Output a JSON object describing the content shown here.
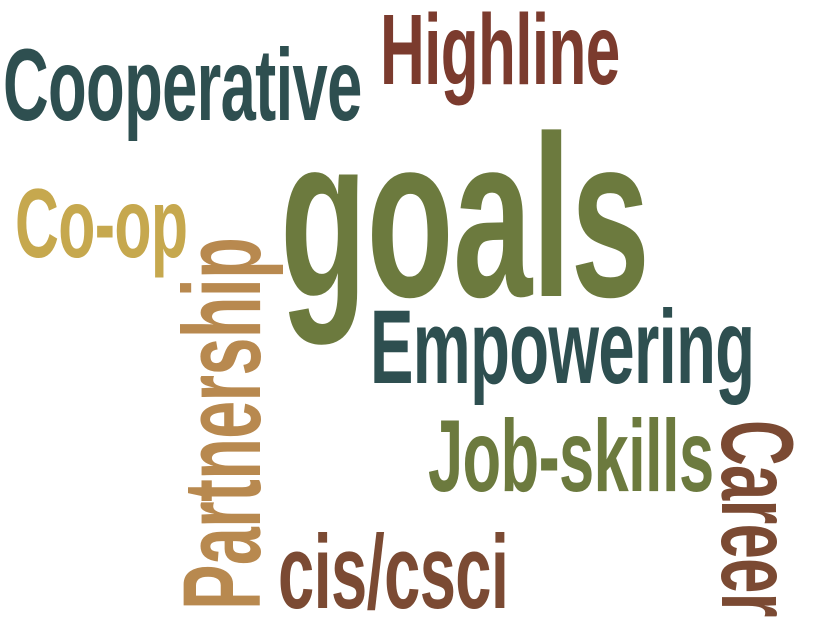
{
  "word_cloud": {
    "words": [
      {
        "id": "highline",
        "text": "Highline",
        "color": "#7b3b2e",
        "orientation": "horizontal"
      },
      {
        "id": "cooperative",
        "text": "Cooperative",
        "color": "#2e4f50",
        "orientation": "horizontal"
      },
      {
        "id": "goals",
        "text": "goals",
        "color": "#6c7a3e",
        "orientation": "horizontal"
      },
      {
        "id": "coop",
        "text": "Co-op",
        "color": "#c6a84e",
        "orientation": "horizontal"
      },
      {
        "id": "empowering",
        "text": "Empowering",
        "color": "#2e4f50",
        "orientation": "horizontal"
      },
      {
        "id": "jobskills",
        "text": "Job-skills",
        "color": "#6c7a3e",
        "orientation": "horizontal"
      },
      {
        "id": "ciscsci",
        "text": "cis/csci",
        "color": "#7b4a33",
        "orientation": "horizontal"
      },
      {
        "id": "partnership",
        "text": "Partnership",
        "color": "#b8894f",
        "orientation": "vertical-up"
      },
      {
        "id": "career",
        "text": "Career",
        "color": "#7b4a33",
        "orientation": "vertical-down"
      }
    ]
  }
}
